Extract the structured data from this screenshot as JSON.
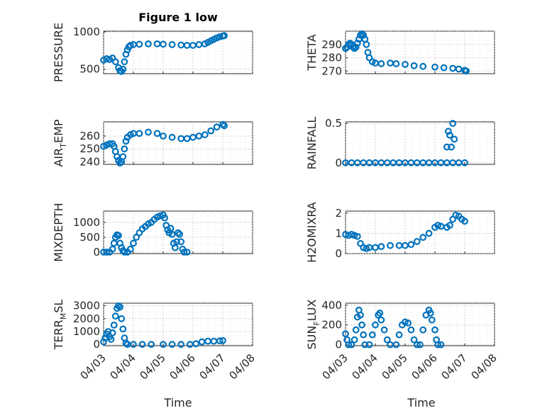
{
  "figure": {
    "title": "Figure 1 low",
    "xlabel": "Time",
    "marker_color": "#0072BD",
    "x_ticks": [
      "04/03",
      "04/04",
      "04/05",
      "04/06",
      "04/07",
      "04/08"
    ]
  },
  "chart_data": [
    {
      "type": "scatter",
      "ylabel_parts": [
        "PRESSURE"
      ],
      "xlim": [
        0,
        5
      ],
      "ylim": [
        440,
        1010
      ],
      "yticks": [
        500,
        1000
      ],
      "yticklabels": [
        "500",
        "1000"
      ],
      "points": [
        [
          0,
          620
        ],
        [
          0.1,
          640
        ],
        [
          0.2,
          630
        ],
        [
          0.3,
          650
        ],
        [
          0.4,
          600
        ],
        [
          0.5,
          520
        ],
        [
          0.55,
          480
        ],
        [
          0.6,
          470
        ],
        [
          0.65,
          500
        ],
        [
          0.7,
          600
        ],
        [
          0.75,
          700
        ],
        [
          0.8,
          760
        ],
        [
          0.85,
          800
        ],
        [
          0.9,
          820
        ],
        [
          1.0,
          830
        ],
        [
          1.2,
          835
        ],
        [
          1.5,
          840
        ],
        [
          1.8,
          840
        ],
        [
          2.0,
          835
        ],
        [
          2.3,
          830
        ],
        [
          2.6,
          825
        ],
        [
          2.8,
          820
        ],
        [
          3.0,
          820
        ],
        [
          3.2,
          830
        ],
        [
          3.4,
          840
        ],
        [
          3.5,
          860
        ],
        [
          3.6,
          880
        ],
        [
          3.7,
          900
        ],
        [
          3.8,
          920
        ],
        [
          3.9,
          935
        ],
        [
          4.0,
          945
        ],
        [
          4.05,
          950
        ]
      ]
    },
    {
      "type": "scatter",
      "ylabel_parts": [
        "THETA"
      ],
      "xlim": [
        0,
        5
      ],
      "ylim": [
        268,
        300
      ],
      "yticks": [
        270,
        280,
        290
      ],
      "yticklabels": [
        "270",
        "280",
        "290"
      ],
      "points": [
        [
          0,
          287
        ],
        [
          0.05,
          288
        ],
        [
          0.1,
          290
        ],
        [
          0.15,
          291
        ],
        [
          0.2,
          290
        ],
        [
          0.25,
          288
        ],
        [
          0.3,
          287
        ],
        [
          0.35,
          288
        ],
        [
          0.4,
          291
        ],
        [
          0.45,
          294
        ],
        [
          0.5,
          297
        ],
        [
          0.55,
          298
        ],
        [
          0.6,
          297
        ],
        [
          0.65,
          294
        ],
        [
          0.7,
          290
        ],
        [
          0.75,
          284
        ],
        [
          0.8,
          280
        ],
        [
          0.9,
          277
        ],
        [
          1.0,
          276
        ],
        [
          1.2,
          275.5
        ],
        [
          1.5,
          276
        ],
        [
          1.7,
          275.5
        ],
        [
          2.0,
          275
        ],
        [
          2.3,
          274
        ],
        [
          2.6,
          273.5
        ],
        [
          3.0,
          273
        ],
        [
          3.3,
          272.5
        ],
        [
          3.6,
          272
        ],
        [
          3.8,
          271.5
        ],
        [
          4.0,
          270.5
        ],
        [
          4.05,
          270
        ]
      ]
    },
    {
      "type": "scatter",
      "ylabel_parts": [
        "AIR",
        "T",
        "EMP"
      ],
      "xlim": [
        0,
        5
      ],
      "ylim": [
        238,
        271
      ],
      "yticks": [
        240,
        250,
        260
      ],
      "yticklabels": [
        "240",
        "250",
        "260"
      ],
      "points": [
        [
          0,
          252
        ],
        [
          0.1,
          253
        ],
        [
          0.2,
          254
        ],
        [
          0.3,
          254
        ],
        [
          0.35,
          252
        ],
        [
          0.4,
          248
        ],
        [
          0.45,
          244
        ],
        [
          0.5,
          241
        ],
        [
          0.55,
          239
        ],
        [
          0.6,
          240
        ],
        [
          0.65,
          244
        ],
        [
          0.7,
          250
        ],
        [
          0.75,
          256
        ],
        [
          0.8,
          259
        ],
        [
          0.9,
          261
        ],
        [
          1.0,
          262
        ],
        [
          1.2,
          262
        ],
        [
          1.5,
          263
        ],
        [
          1.8,
          262
        ],
        [
          2.0,
          260
        ],
        [
          2.3,
          259
        ],
        [
          2.6,
          258
        ],
        [
          2.8,
          258
        ],
        [
          3.0,
          259
        ],
        [
          3.2,
          260
        ],
        [
          3.4,
          261
        ],
        [
          3.6,
          264
        ],
        [
          3.8,
          267
        ],
        [
          4.0,
          269
        ],
        [
          4.05,
          268
        ]
      ]
    },
    {
      "type": "scatter",
      "ylabel_parts": [
        "RAINFALL"
      ],
      "xlim": [
        0,
        5
      ],
      "ylim": [
        -0.02,
        0.52
      ],
      "yticks": [
        0,
        0.5
      ],
      "yticklabels": [
        "0",
        "0.5"
      ],
      "points": [
        [
          0,
          0
        ],
        [
          0.2,
          0
        ],
        [
          0.4,
          0
        ],
        [
          0.6,
          0
        ],
        [
          0.8,
          0
        ],
        [
          1.0,
          0
        ],
        [
          1.2,
          0
        ],
        [
          1.4,
          0
        ],
        [
          1.6,
          0
        ],
        [
          1.8,
          0
        ],
        [
          2.0,
          0
        ],
        [
          2.2,
          0
        ],
        [
          2.4,
          0
        ],
        [
          2.6,
          0
        ],
        [
          2.8,
          0
        ],
        [
          3.0,
          0
        ],
        [
          3.2,
          0
        ],
        [
          3.4,
          0
        ],
        [
          3.6,
          0
        ],
        [
          3.8,
          0
        ],
        [
          4.0,
          0
        ],
        [
          3.4,
          0.2
        ],
        [
          3.45,
          0.4
        ],
        [
          3.5,
          0.35
        ],
        [
          3.55,
          0.2
        ],
        [
          3.6,
          0.5
        ],
        [
          3.65,
          0.3
        ]
      ]
    },
    {
      "type": "scatter",
      "ylabel_parts": [
        "MIXDEPTH"
      ],
      "xlim": [
        0,
        5
      ],
      "ylim": [
        -50,
        1380
      ],
      "yticks": [
        0,
        500,
        1000
      ],
      "yticklabels": [
        "0",
        "500",
        "1000"
      ],
      "points": [
        [
          0,
          0
        ],
        [
          0.1,
          0
        ],
        [
          0.2,
          0
        ],
        [
          0.3,
          100
        ],
        [
          0.35,
          300
        ],
        [
          0.4,
          500
        ],
        [
          0.45,
          580
        ],
        [
          0.5,
          560
        ],
        [
          0.55,
          300
        ],
        [
          0.6,
          150
        ],
        [
          0.65,
          50
        ],
        [
          0.7,
          0
        ],
        [
          0.8,
          0
        ],
        [
          0.9,
          100
        ],
        [
          1.0,
          300
        ],
        [
          1.1,
          500
        ],
        [
          1.2,
          650
        ],
        [
          1.3,
          780
        ],
        [
          1.4,
          860
        ],
        [
          1.5,
          950
        ],
        [
          1.6,
          1000
        ],
        [
          1.7,
          1100
        ],
        [
          1.8,
          1180
        ],
        [
          1.9,
          1220
        ],
        [
          2.0,
          1250
        ],
        [
          2.05,
          1150
        ],
        [
          2.1,
          900
        ],
        [
          2.15,
          750
        ],
        [
          2.2,
          650
        ],
        [
          2.25,
          800
        ],
        [
          2.3,
          600
        ],
        [
          2.35,
          300
        ],
        [
          2.4,
          150
        ],
        [
          2.45,
          350
        ],
        [
          2.5,
          650
        ],
        [
          2.55,
          600
        ],
        [
          2.6,
          350
        ],
        [
          2.65,
          100
        ],
        [
          2.7,
          0
        ],
        [
          2.8,
          0
        ]
      ]
    },
    {
      "type": "scatter",
      "ylabel_parts": [
        "H2OMIXRA"
      ],
      "xlim": [
        0,
        5
      ],
      "ylim": [
        0,
        2.1
      ],
      "yticks": [
        0,
        1,
        2
      ],
      "yticklabels": [
        "0",
        "1",
        "2"
      ],
      "points": [
        [
          0,
          0.95
        ],
        [
          0.1,
          0.9
        ],
        [
          0.2,
          0.95
        ],
        [
          0.3,
          0.9
        ],
        [
          0.4,
          0.85
        ],
        [
          0.5,
          0.5
        ],
        [
          0.6,
          0.3
        ],
        [
          0.7,
          0.25
        ],
        [
          0.8,
          0.3
        ],
        [
          1.0,
          0.3
        ],
        [
          1.2,
          0.35
        ],
        [
          1.5,
          0.4
        ],
        [
          1.8,
          0.4
        ],
        [
          2.0,
          0.4
        ],
        [
          2.2,
          0.45
        ],
        [
          2.4,
          0.6
        ],
        [
          2.6,
          0.8
        ],
        [
          2.8,
          1.0
        ],
        [
          3.0,
          1.3
        ],
        [
          3.1,
          1.4
        ],
        [
          3.2,
          1.35
        ],
        [
          3.4,
          1.3
        ],
        [
          3.5,
          1.4
        ],
        [
          3.6,
          1.7
        ],
        [
          3.7,
          1.9
        ],
        [
          3.8,
          1.85
        ],
        [
          3.9,
          1.7
        ],
        [
          4.0,
          1.6
        ]
      ]
    },
    {
      "type": "scatter",
      "ylabel_parts": [
        "TERR",
        "M",
        "SL"
      ],
      "xlim": [
        0,
        5
      ],
      "ylim": [
        -100,
        3200
      ],
      "yticks": [
        0,
        1000,
        2000,
        3000
      ],
      "yticklabels": [
        "0",
        "1000",
        "2000",
        "3000"
      ],
      "points": [
        [
          0,
          200
        ],
        [
          0.05,
          500
        ],
        [
          0.1,
          800
        ],
        [
          0.15,
          1000
        ],
        [
          0.2,
          600
        ],
        [
          0.25,
          400
        ],
        [
          0.3,
          900
        ],
        [
          0.35,
          1500
        ],
        [
          0.4,
          2200
        ],
        [
          0.45,
          2800
        ],
        [
          0.5,
          3000
        ],
        [
          0.55,
          2900
        ],
        [
          0.6,
          2000
        ],
        [
          0.65,
          1200
        ],
        [
          0.7,
          500
        ],
        [
          0.75,
          100
        ],
        [
          0.8,
          0
        ],
        [
          1.0,
          0
        ],
        [
          1.3,
          0
        ],
        [
          1.6,
          0
        ],
        [
          2.0,
          0
        ],
        [
          2.3,
          0
        ],
        [
          2.6,
          0
        ],
        [
          2.9,
          0
        ],
        [
          3.1,
          50
        ],
        [
          3.3,
          200
        ],
        [
          3.5,
          250
        ],
        [
          3.7,
          250
        ],
        [
          3.9,
          280
        ],
        [
          4.0,
          300
        ]
      ]
    },
    {
      "type": "scatter",
      "ylabel_parts": [
        "SUN",
        "F",
        "LUX"
      ],
      "xlim": [
        0,
        5
      ],
      "ylim": [
        -10,
        420
      ],
      "yticks": [
        0,
        200,
        400
      ],
      "yticklabels": [
        "0",
        "200",
        "400"
      ],
      "points": [
        [
          0,
          110
        ],
        [
          0.05,
          50
        ],
        [
          0.1,
          0
        ],
        [
          0.2,
          0
        ],
        [
          0.3,
          50
        ],
        [
          0.35,
          150
        ],
        [
          0.4,
          280
        ],
        [
          0.45,
          350
        ],
        [
          0.5,
          300
        ],
        [
          0.55,
          200
        ],
        [
          0.6,
          100
        ],
        [
          0.65,
          0
        ],
        [
          0.8,
          0
        ],
        [
          0.9,
          100
        ],
        [
          1.0,
          200
        ],
        [
          1.1,
          300
        ],
        [
          1.15,
          320
        ],
        [
          1.2,
          250
        ],
        [
          1.3,
          150
        ],
        [
          1.4,
          50
        ],
        [
          1.5,
          0
        ],
        [
          1.7,
          0
        ],
        [
          1.8,
          100
        ],
        [
          1.9,
          200
        ],
        [
          2.0,
          230
        ],
        [
          2.1,
          220
        ],
        [
          2.2,
          150
        ],
        [
          2.3,
          50
        ],
        [
          2.4,
          0
        ],
        [
          2.5,
          0
        ],
        [
          2.6,
          150
        ],
        [
          2.7,
          300
        ],
        [
          2.8,
          350
        ],
        [
          2.85,
          320
        ],
        [
          2.9,
          250
        ],
        [
          3.0,
          150
        ],
        [
          3.05,
          50
        ],
        [
          3.1,
          0
        ],
        [
          3.2,
          0
        ]
      ]
    }
  ]
}
